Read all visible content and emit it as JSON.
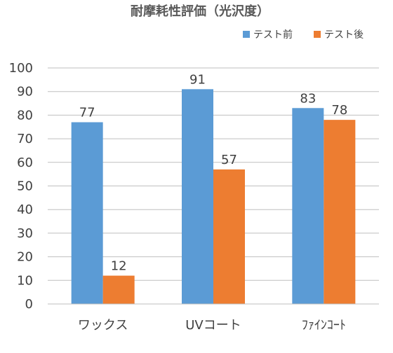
{
  "chart_data": {
    "type": "bar",
    "title": "耐摩耗性評価（光沢度）",
    "xlabel": "",
    "ylabel": "",
    "categories": [
      "ワックス",
      "UVコート",
      "ﾌｧｲﾝｺｰﾄ"
    ],
    "series": [
      {
        "name": "テスト前",
        "values": [
          77,
          91,
          83
        ],
        "color": "#5B9BD5"
      },
      {
        "name": "テスト後",
        "values": [
          12,
          57,
          78
        ],
        "color": "#ED7D31"
      }
    ],
    "ylim": [
      0,
      100
    ],
    "yticks": [
      "0",
      "10",
      "20",
      "30",
      "40",
      "50",
      "60",
      "70",
      "80",
      "90",
      "100"
    ],
    "grid": true,
    "legend": "top-right",
    "data_labels": true
  }
}
